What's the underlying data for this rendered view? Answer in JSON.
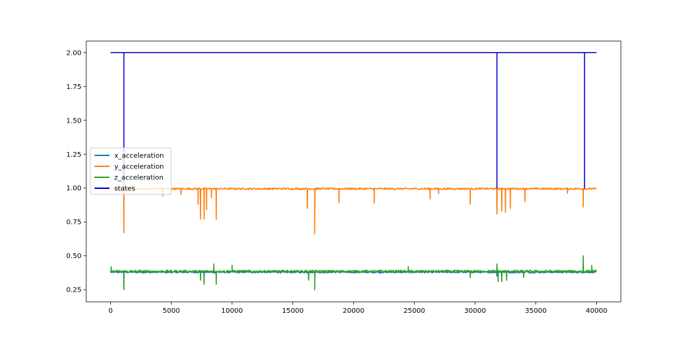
{
  "chart_data": {
    "type": "line",
    "title": "",
    "xlabel": "",
    "ylabel": "",
    "xlim": [
      -2000,
      42000
    ],
    "ylim": [
      0.16,
      2.085
    ],
    "x_ticks": [
      0,
      5000,
      10000,
      15000,
      20000,
      25000,
      30000,
      35000,
      40000
    ],
    "y_ticks": [
      0.25,
      0.5,
      0.75,
      1.0,
      1.25,
      1.5,
      1.75,
      2.0
    ],
    "x_tick_labels": [
      "0",
      "5000",
      "10000",
      "15000",
      "20000",
      "25000",
      "30000",
      "35000",
      "40000"
    ],
    "y_tick_labels": [
      "0.25",
      "0.50",
      "0.75",
      "1.00",
      "1.25",
      "1.50",
      "1.75",
      "2.00"
    ],
    "grid": false,
    "legend_position": "center-left",
    "series": [
      {
        "name": "x_acceleration",
        "color": "#1f77b4",
        "baseline": 0.38,
        "x_range": [
          0,
          40000
        ],
        "features": [
          [
            16300,
            0.33
          ],
          [
            31800,
            0.35
          ],
          [
            34000,
            0.36
          ]
        ]
      },
      {
        "name": "y_acceleration",
        "color": "#ff7f0e",
        "baseline": 0.995,
        "x_range": [
          0,
          40000
        ],
        "features": [
          [
            1100,
            0.67
          ],
          [
            4300,
            0.94
          ],
          [
            5800,
            0.95
          ],
          [
            7200,
            0.88
          ],
          [
            7400,
            0.77
          ],
          [
            7700,
            0.77
          ],
          [
            7900,
            0.84
          ],
          [
            8300,
            0.93
          ],
          [
            8700,
            0.77
          ],
          [
            16200,
            0.85
          ],
          [
            16800,
            0.66
          ],
          [
            18800,
            0.89
          ],
          [
            21700,
            0.89
          ],
          [
            26300,
            0.92
          ],
          [
            27000,
            0.96
          ],
          [
            29600,
            0.88
          ],
          [
            31800,
            0.81
          ],
          [
            32200,
            0.83
          ],
          [
            32500,
            0.82
          ],
          [
            32900,
            0.85
          ],
          [
            34100,
            0.9
          ],
          [
            37600,
            0.96
          ],
          [
            38900,
            0.86
          ]
        ]
      },
      {
        "name": "z_acceleration",
        "color": "#2ca02c",
        "baseline": 0.385,
        "x_range": [
          0,
          40000
        ],
        "features": [
          [
            50,
            0.42
          ],
          [
            1100,
            0.25
          ],
          [
            7400,
            0.32
          ],
          [
            7700,
            0.29
          ],
          [
            8500,
            0.44
          ],
          [
            8700,
            0.29
          ],
          [
            10000,
            0.43
          ],
          [
            16300,
            0.32
          ],
          [
            16800,
            0.25
          ],
          [
            24500,
            0.42
          ],
          [
            29600,
            0.34
          ],
          [
            31800,
            0.44
          ],
          [
            31900,
            0.31
          ],
          [
            32200,
            0.31
          ],
          [
            32600,
            0.32
          ],
          [
            34000,
            0.34
          ],
          [
            38900,
            0.5
          ],
          [
            39600,
            0.43
          ]
        ]
      },
      {
        "name": "states",
        "color": "#0000cc",
        "x": [
          0,
          1100,
          1100,
          1100,
          31800,
          31800,
          31800,
          39000,
          39000,
          39000,
          40000
        ],
        "y": [
          2.0,
          2.0,
          1.0,
          2.0,
          2.0,
          1.0,
          2.0,
          2.0,
          1.0,
          2.0,
          2.0
        ]
      }
    ]
  }
}
